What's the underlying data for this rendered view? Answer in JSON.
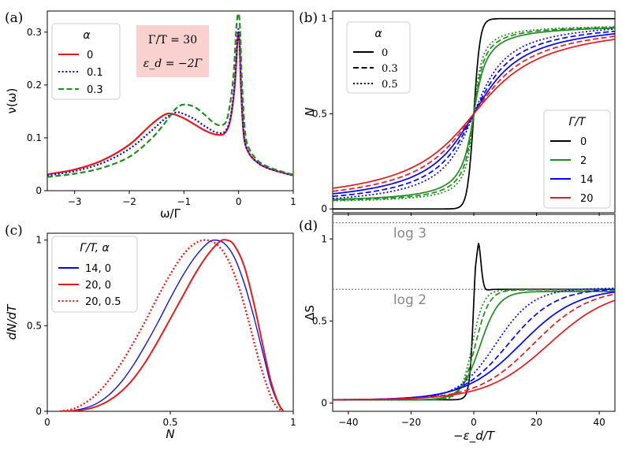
{
  "figure": {
    "panels": [
      "(a)",
      "(b)",
      "(c)",
      "(d)"
    ]
  },
  "chart_data": [
    {
      "id": "a",
      "type": "line",
      "xlabel": "ω/Γ",
      "ylabel": "ν(ω)",
      "xlim": [
        -3.5,
        1.0
      ],
      "ylim": [
        0,
        0.34
      ],
      "xticks": [
        -3,
        -2,
        -1,
        0,
        1
      ],
      "yticks": [
        0,
        0.1,
        0.2,
        0.3
      ],
      "legend": {
        "title": "α",
        "entries": [
          "0",
          "0.1",
          "0.3"
        ]
      },
      "annotation": [
        "Γ/T = 30",
        "ε_d = −2Γ"
      ],
      "series": [
        {
          "name": "0",
          "color": "#e41a1c",
          "style": "solid",
          "x": [
            -3.5,
            -3.0,
            -2.5,
            -2.0,
            -1.6,
            -1.35,
            -1.2,
            -1.0,
            -0.8,
            -0.6,
            -0.4,
            -0.25,
            -0.15,
            -0.07,
            -0.02,
            0.0,
            0.02,
            0.05,
            0.1,
            0.2,
            0.35,
            0.5,
            0.7,
            1.0
          ],
          "y": [
            0.031,
            0.04,
            0.057,
            0.087,
            0.125,
            0.144,
            0.145,
            0.137,
            0.125,
            0.113,
            0.106,
            0.109,
            0.135,
            0.2,
            0.285,
            0.298,
            0.27,
            0.18,
            0.1,
            0.069,
            0.053,
            0.044,
            0.037,
            0.029
          ]
        },
        {
          "name": "0.1",
          "color": "#0000ff",
          "style": "dotted",
          "x": [
            -3.5,
            -3.0,
            -2.5,
            -2.0,
            -1.6,
            -1.35,
            -1.15,
            -1.0,
            -0.8,
            -0.6,
            -0.4,
            -0.25,
            -0.15,
            -0.07,
            -0.02,
            0.0,
            0.02,
            0.05,
            0.1,
            0.2,
            0.35,
            0.5,
            0.7,
            1.0
          ],
          "y": [
            0.029,
            0.037,
            0.052,
            0.079,
            0.113,
            0.136,
            0.148,
            0.145,
            0.135,
            0.121,
            0.11,
            0.112,
            0.138,
            0.205,
            0.29,
            0.305,
            0.275,
            0.185,
            0.102,
            0.07,
            0.053,
            0.044,
            0.037,
            0.029
          ]
        },
        {
          "name": "0.3",
          "color": "#228b22",
          "style": "dashed",
          "x": [
            -3.5,
            -3.0,
            -2.5,
            -2.0,
            -1.6,
            -1.35,
            -1.15,
            -1.0,
            -0.8,
            -0.6,
            -0.45,
            -0.3,
            -0.2,
            -0.1,
            -0.04,
            0.0,
            0.03,
            0.06,
            0.12,
            0.2,
            0.35,
            0.5,
            0.7,
            1.0
          ],
          "y": [
            0.026,
            0.032,
            0.043,
            0.064,
            0.098,
            0.128,
            0.155,
            0.163,
            0.158,
            0.142,
            0.128,
            0.124,
            0.14,
            0.21,
            0.31,
            0.335,
            0.3,
            0.21,
            0.11,
            0.078,
            0.057,
            0.047,
            0.039,
            0.03
          ]
        }
      ]
    },
    {
      "id": "b",
      "type": "line",
      "xlabel": "",
      "ylabel": "N",
      "xlim": [
        -45,
        45
      ],
      "ylim": [
        -0.02,
        1.04
      ],
      "yticks": [
        0,
        0.5,
        1
      ],
      "legends": [
        {
          "title": "α",
          "entries": [
            "0",
            "0.3",
            "0.5"
          ],
          "styles": [
            "solid",
            "dashed",
            "dotted"
          ]
        },
        {
          "title": "Γ/T",
          "entries": [
            "0",
            "2",
            "14",
            "20"
          ],
          "colors": [
            "#000000",
            "#228b22",
            "#0000ff",
            "#e41a1c"
          ]
        }
      ],
      "series": [
        {
          "name": "Γ/T=0, α=0",
          "color": "#000000",
          "style": "solid",
          "form": "logistic",
          "width": 1.0,
          "top": 1.0
        },
        {
          "name": "Γ/T=2, α=0",
          "color": "#228b22",
          "style": "solid",
          "form": "atan",
          "width": 3.0,
          "top": 0.97
        },
        {
          "name": "Γ/T=2, α=0.3",
          "color": "#228b22",
          "style": "dashed",
          "form": "atan",
          "width": 2.4,
          "top": 0.97
        },
        {
          "name": "Γ/T=2, α=0.5",
          "color": "#228b22",
          "style": "dotted",
          "form": "atan",
          "width": 1.9,
          "top": 0.97
        },
        {
          "name": "Γ/T=14, α=0",
          "color": "#0000ff",
          "style": "solid",
          "form": "atan",
          "width": 11.5,
          "top": 1.0
        },
        {
          "name": "Γ/T=14, α=0.3",
          "color": "#0000ff",
          "style": "dashed",
          "form": "atan",
          "width": 9.5,
          "top": 1.0
        },
        {
          "name": "Γ/T=14, α=0.5",
          "color": "#0000ff",
          "style": "dotted",
          "form": "atan",
          "width": 7.8,
          "top": 1.0
        },
        {
          "name": "Γ/T=20, α=0",
          "color": "#e41a1c",
          "style": "solid",
          "form": "atan",
          "width": 16.0,
          "top": 1.0
        },
        {
          "name": "Γ/T=20, α=0.3",
          "color": "#e41a1c",
          "style": "dashed",
          "form": "atan",
          "width": 13.5,
          "top": 1.0
        }
      ]
    },
    {
      "id": "c",
      "type": "line",
      "xlabel": "N",
      "ylabel": "dN/dT",
      "xlim": [
        0,
        1
      ],
      "ylim": [
        0,
        1.04
      ],
      "xticks": [
        0,
        0.5,
        1
      ],
      "yticks": [
        0,
        0.5,
        1
      ],
      "legend": {
        "title": "Γ/T, α",
        "entries": [
          "14, 0",
          "20, 0",
          "20, 0.5"
        ]
      },
      "series": [
        {
          "name": "14, 0",
          "color": "#0000ff",
          "style": "solid",
          "width": 1.3,
          "x": [
            0.05,
            0.1,
            0.15,
            0.2,
            0.25,
            0.3,
            0.35,
            0.4,
            0.45,
            0.5,
            0.55,
            0.6,
            0.65,
            0.68,
            0.72,
            0.76,
            0.8,
            0.84,
            0.88,
            0.91,
            0.94,
            0.96
          ],
          "y": [
            0.0,
            0.004,
            0.017,
            0.045,
            0.095,
            0.17,
            0.27,
            0.39,
            0.52,
            0.66,
            0.79,
            0.9,
            0.98,
            1.0,
            0.98,
            0.9,
            0.75,
            0.55,
            0.32,
            0.15,
            0.04,
            0.0
          ]
        },
        {
          "name": "20, 0",
          "color": "#e41a1c",
          "style": "solid",
          "width": 2.0,
          "x": [
            0.05,
            0.1,
            0.15,
            0.2,
            0.25,
            0.3,
            0.35,
            0.4,
            0.45,
            0.5,
            0.55,
            0.6,
            0.65,
            0.7,
            0.73,
            0.76,
            0.8,
            0.84,
            0.88,
            0.91,
            0.94,
            0.96
          ],
          "y": [
            0.0,
            0.002,
            0.01,
            0.028,
            0.062,
            0.115,
            0.19,
            0.29,
            0.41,
            0.54,
            0.67,
            0.8,
            0.91,
            0.99,
            1.0,
            0.97,
            0.85,
            0.63,
            0.36,
            0.17,
            0.045,
            0.0
          ]
        },
        {
          "name": "20, 0.5",
          "color": "#e41a1c",
          "style": "dotted",
          "width": 2.3,
          "x": [
            0.05,
            0.1,
            0.15,
            0.2,
            0.25,
            0.3,
            0.35,
            0.4,
            0.45,
            0.5,
            0.55,
            0.6,
            0.65,
            0.7,
            0.74,
            0.78,
            0.82,
            0.86,
            0.9,
            0.93,
            0.96
          ],
          "y": [
            0.0,
            0.012,
            0.045,
            0.1,
            0.18,
            0.28,
            0.4,
            0.53,
            0.67,
            0.8,
            0.91,
            0.98,
            1.0,
            0.96,
            0.87,
            0.72,
            0.52,
            0.3,
            0.12,
            0.03,
            0.0
          ]
        }
      ]
    },
    {
      "id": "d",
      "type": "line",
      "xlabel": "−ε_d/T",
      "ylabel": "ΔS",
      "xlim": [
        -45,
        45
      ],
      "ylim": [
        -0.05,
        1.15
      ],
      "xticks": [
        -40,
        -20,
        0,
        20,
        40
      ],
      "yticks": [
        0,
        0.5,
        1
      ],
      "reference_lines": [
        {
          "label": "log 3",
          "y": 1.0986
        },
        {
          "label": "log 2",
          "y": 0.6931
        }
      ],
      "series": [
        {
          "name": "Γ/T=0, α=0",
          "color": "#000000",
          "style": "solid",
          "form": "peak"
        },
        {
          "name": "Γ/T=2, α=0",
          "color": "#228b22",
          "style": "solid",
          "center": 2.0,
          "width": 3.0,
          "top": 0.68
        },
        {
          "name": "Γ/T=2, α=0.3",
          "color": "#228b22",
          "style": "dashed",
          "center": 0.5,
          "width": 2.2,
          "top": 0.69
        },
        {
          "name": "Γ/T=2, α=0.5",
          "color": "#228b22",
          "style": "dotted",
          "center": -0.5,
          "width": 1.8,
          "top": 0.69
        },
        {
          "name": "Γ/T=14, α=0",
          "color": "#0000ff",
          "style": "solid",
          "center": 15.0,
          "width": 9.0,
          "top": 0.7
        },
        {
          "name": "Γ/T=14, α=0.3",
          "color": "#0000ff",
          "style": "dashed",
          "center": 11.0,
          "width": 7.5,
          "top": 0.7
        },
        {
          "name": "Γ/T=14, α=0.5",
          "color": "#0000ff",
          "style": "dotted",
          "center": 7.0,
          "width": 6.0,
          "top": 0.7
        },
        {
          "name": "Γ/T=20, α=0",
          "color": "#e41a1c",
          "style": "solid",
          "center": 24.0,
          "width": 10.0,
          "top": 0.7
        },
        {
          "name": "Γ/T=20, α=0.3",
          "color": "#e41a1c",
          "style": "dashed",
          "center": 19.0,
          "width": 9.0,
          "top": 0.7
        }
      ]
    }
  ]
}
